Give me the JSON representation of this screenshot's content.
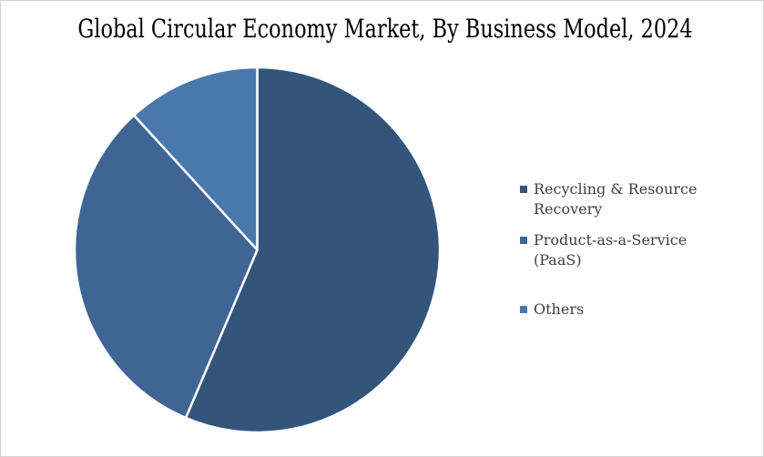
{
  "page": {
    "background_color": "#ffffff",
    "border_color": "#d4d4d4"
  },
  "title": "Global Circular Economy Market, By Business Model, 2024",
  "chart_data": {
    "type": "pie",
    "title": "Global Circular Economy Market, By Business Model, 2024",
    "categories": [
      "Recycling & Resource Recovery",
      "Product-as-a-Service (PaaS)",
      "Others"
    ],
    "values": [
      56.4,
      31.8,
      11.8
    ],
    "value_unit": "percent, estimated from slice angles (no data labels shown in chart)",
    "colors": [
      "#33557C",
      "#3E6594",
      "#4A78AC"
    ],
    "slice_border_color": "#ffffff",
    "start_angle_deg": 0,
    "direction": "clockwise",
    "legend_position": "right",
    "data_labels": false,
    "grid": false
  },
  "legend": {
    "items": [
      {
        "label": "Recycling & Resource Recovery",
        "color": "#33557C"
      },
      {
        "label": "Product-as-a-Service (PaaS)",
        "color": "#3E6594"
      },
      {
        "label": "Others",
        "color": "#4A78AC"
      }
    ]
  }
}
